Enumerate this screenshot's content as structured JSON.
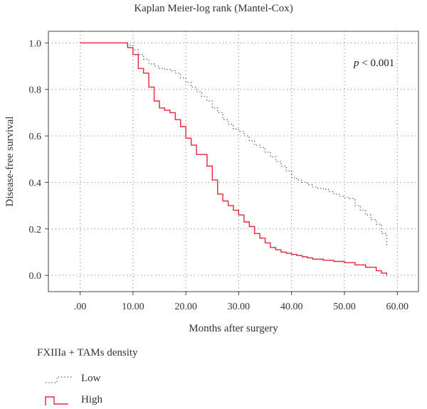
{
  "chart_data": {
    "type": "line",
    "title": "Kaplan Meier-log rank (Mantel-Cox)",
    "xlabel": "Months after surgery",
    "ylabel": "Disease-free survival",
    "xlim": [
      -6,
      64
    ],
    "ylim": [
      -0.07,
      1.05
    ],
    "xticks": [
      0,
      10,
      20,
      30,
      40,
      50,
      60
    ],
    "xtick_labels": [
      ".00",
      "10.00",
      "20.00",
      "30.00",
      "40.00",
      "50.00",
      "60.00"
    ],
    "yticks": [
      0.0,
      0.2,
      0.4,
      0.6,
      0.8,
      1.0
    ],
    "ytick_labels": [
      "0.0",
      "0.2",
      "0.4",
      "0.6",
      "0.8",
      "1.0"
    ],
    "grid": true,
    "annotation": {
      "text_italic": "p",
      "text_rest": " < 0.001"
    },
    "legend_title": "FXIIIa + TAMs density",
    "series": [
      {
        "name": "Low",
        "color": "#555555",
        "style": "dotted",
        "step": true,
        "x": [
          0,
          9,
          10,
          11,
          12,
          13,
          14,
          15,
          16,
          17,
          18,
          19,
          20,
          21,
          22,
          23,
          24,
          25,
          26,
          27,
          28,
          29,
          30,
          31,
          32,
          33,
          34,
          35,
          36,
          37,
          38,
          39,
          40,
          41,
          42,
          43,
          44,
          45,
          46,
          47,
          48,
          49,
          50,
          51,
          52,
          53,
          54,
          55,
          56,
          57,
          58
        ],
        "y": [
          1.0,
          0.99,
          0.97,
          0.95,
          0.93,
          0.91,
          0.9,
          0.89,
          0.885,
          0.88,
          0.87,
          0.85,
          0.83,
          0.81,
          0.79,
          0.77,
          0.75,
          0.72,
          0.7,
          0.67,
          0.65,
          0.63,
          0.62,
          0.6,
          0.58,
          0.56,
          0.55,
          0.53,
          0.51,
          0.49,
          0.47,
          0.45,
          0.42,
          0.41,
          0.4,
          0.39,
          0.38,
          0.375,
          0.37,
          0.36,
          0.35,
          0.34,
          0.335,
          0.33,
          0.3,
          0.28,
          0.26,
          0.24,
          0.22,
          0.18,
          0.13
        ]
      },
      {
        "name": "High",
        "color": "#e8253c",
        "style": "solid",
        "step": true,
        "x": [
          0,
          9,
          10,
          11,
          12,
          13,
          14,
          15,
          16,
          17,
          18,
          19,
          20,
          21,
          22,
          24,
          25,
          26,
          27,
          28,
          29,
          30,
          31,
          32,
          33,
          34,
          35,
          36,
          37,
          38,
          39,
          40,
          41,
          42,
          43,
          44,
          46,
          48,
          50,
          52,
          54,
          56,
          57,
          58
        ],
        "y": [
          1.0,
          0.98,
          0.95,
          0.89,
          0.87,
          0.81,
          0.75,
          0.72,
          0.71,
          0.7,
          0.67,
          0.64,
          0.59,
          0.56,
          0.52,
          0.47,
          0.41,
          0.35,
          0.32,
          0.3,
          0.28,
          0.26,
          0.23,
          0.21,
          0.18,
          0.16,
          0.14,
          0.12,
          0.11,
          0.1,
          0.095,
          0.09,
          0.085,
          0.08,
          0.075,
          0.07,
          0.065,
          0.06,
          0.055,
          0.045,
          0.035,
          0.02,
          0.01,
          0.0
        ]
      }
    ]
  }
}
